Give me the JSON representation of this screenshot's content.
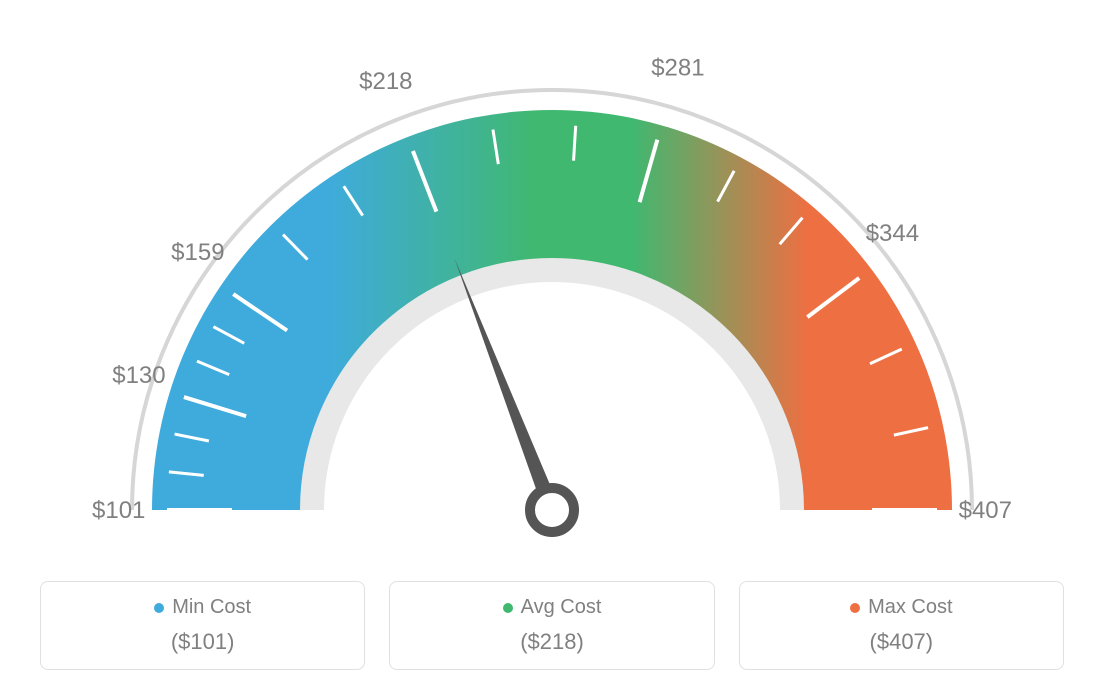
{
  "gauge": {
    "type": "gauge",
    "min": 101,
    "max": 407,
    "avg": 218,
    "ticks": [
      101,
      130,
      159,
      218,
      281,
      344,
      407
    ],
    "tick_labels": [
      "$101",
      "$130",
      "$159",
      "$218",
      "$281",
      "$344",
      "$407"
    ],
    "minor_ticks_per_gap": 2,
    "colors": {
      "min": "#3fabdd",
      "avg": "#40b870",
      "max": "#ee6f42",
      "outer_ring": "#d6d6d6",
      "inner_ring": "#e8e8e8",
      "tick_mark": "#ffffff",
      "label_text": "#808080",
      "needle": "#555555",
      "background": "#ffffff",
      "card_border": "#e0e0e0"
    },
    "geometry": {
      "outer_ring_r": 420,
      "outer_ring_w": 4,
      "arc_outer_r": 400,
      "arc_inner_r": 250,
      "inner_ring_r": 240,
      "inner_ring_w": 24,
      "tick_outer_r": 385,
      "tick_major_inner_r": 320,
      "tick_minor_inner_r": 350,
      "label_r": 460,
      "needle_len": 270,
      "needle_base_r": 22,
      "needle_base_stroke": 10
    },
    "typography": {
      "tick_label_fontsize": 24,
      "card_label_fontsize": 20,
      "card_value_fontsize": 22
    }
  },
  "cards": [
    {
      "label": "Min Cost",
      "value": "($101)",
      "dot_color": "#3fabdd"
    },
    {
      "label": "Avg Cost",
      "value": "($218)",
      "dot_color": "#40b870"
    },
    {
      "label": "Max Cost",
      "value": "($407)",
      "dot_color": "#ee6f42"
    }
  ]
}
